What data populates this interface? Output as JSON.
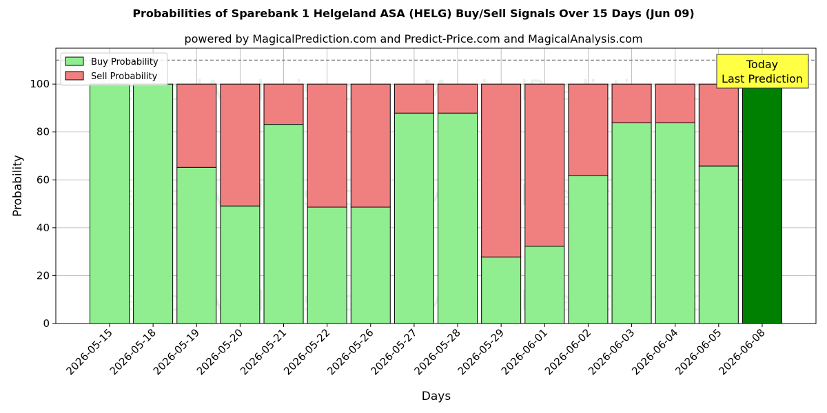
{
  "colors": {
    "buy": "#90ee90",
    "sell": "#f08080",
    "today": "#008000",
    "annotation_bg": "#ffff44",
    "grid": "#b0b0b0",
    "edge": "#000000"
  },
  "chart_data": {
    "type": "bar",
    "stacked": true,
    "title": "Probabilities of Sparebank 1 Helgeland ASA (HELG) Buy/Sell Signals Over 15 Days (Jun 09)",
    "subtitle": "powered by MagicalPrediction.com and Predict-Price.com and MagicalAnalysis.com",
    "xlabel": "Days",
    "ylabel": "Probability",
    "ylim": [
      0,
      115
    ],
    "yticks": [
      0,
      20,
      40,
      60,
      80,
      100
    ],
    "grid": true,
    "legend_position": "top-left",
    "reference_line": 110,
    "categories": [
      "2026-05-15",
      "2026-05-18",
      "2026-05-19",
      "2026-05-20",
      "2026-05-21",
      "2026-05-22",
      "2026-05-26",
      "2026-05-27",
      "2026-05-28",
      "2026-05-29",
      "2026-06-01",
      "2026-06-02",
      "2026-06-03",
      "2026-06-04",
      "2026-06-05",
      "2026-06-08"
    ],
    "series": [
      {
        "name": "Buy Probability",
        "values": [
          100,
          100,
          65.2,
          49.1,
          83.2,
          48.6,
          48.6,
          87.9,
          87.9,
          27.8,
          32.3,
          61.8,
          83.8,
          83.8,
          65.8,
          100
        ]
      },
      {
        "name": "Sell Probability",
        "values": [
          0,
          0,
          34.8,
          50.9,
          16.8,
          51.4,
          51.4,
          12.1,
          12.1,
          72.2,
          67.7,
          38.2,
          16.2,
          16.2,
          34.2,
          0
        ]
      }
    ],
    "highlight_index": 15,
    "annotation": {
      "line1": "Today",
      "line2": "Last Prediction"
    },
    "watermarks": [
      "MagicalAnalysis.com",
      "MagicalPrediction.com"
    ]
  }
}
